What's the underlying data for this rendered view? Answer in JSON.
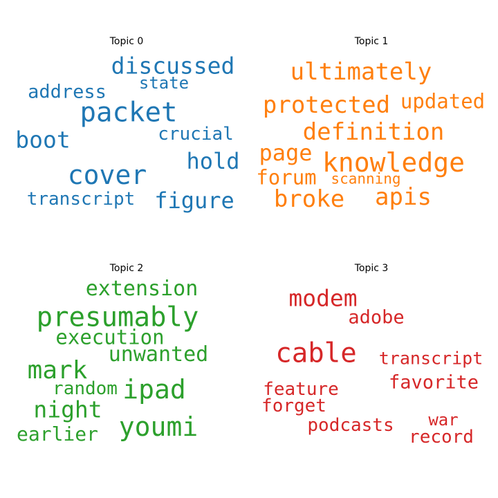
{
  "chart_data": [
    {
      "type": "wordcloud",
      "title": "Topic 0",
      "color": "#1f77b4",
      "words": [
        "discussed",
        "packet",
        "address",
        "state",
        "boot",
        "crucial",
        "cover",
        "hold",
        "transcript",
        "figure"
      ]
    },
    {
      "type": "wordcloud",
      "title": "Topic 1",
      "color": "#ff7f0e",
      "words": [
        "ultimately",
        "protected",
        "updated",
        "definition",
        "page",
        "knowledge",
        "forum",
        "scanning",
        "broke",
        "apis"
      ]
    },
    {
      "type": "wordcloud",
      "title": "Topic 2",
      "color": "#2ca02c",
      "words": [
        "extension",
        "presumably",
        "execution",
        "mark",
        "unwanted",
        "random",
        "ipad",
        "night",
        "earlier",
        "youmi"
      ]
    },
    {
      "type": "wordcloud",
      "title": "Topic 3",
      "color": "#d62728",
      "words": [
        "modem",
        "adobe",
        "cable",
        "transcript",
        "favorite",
        "feature",
        "forget",
        "podcasts",
        "war",
        "record"
      ]
    }
  ]
}
